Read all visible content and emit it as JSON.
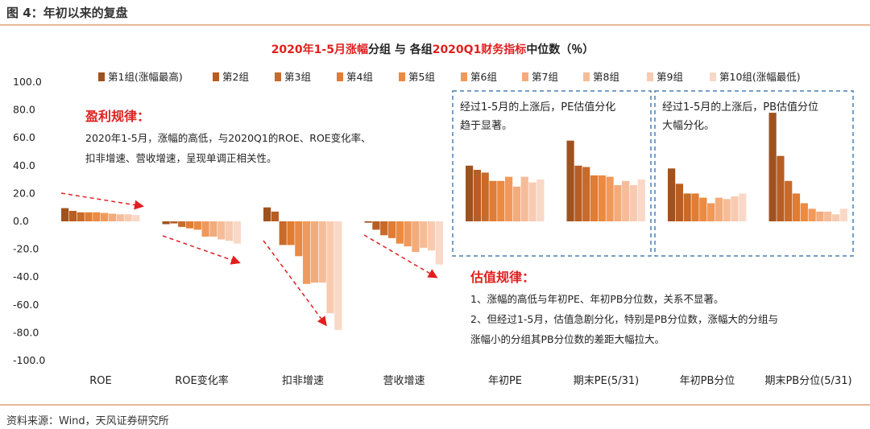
{
  "header": {
    "title": "图 4：年初以来的复盘"
  },
  "footer": {
    "source": "资料来源：Wind，天风证券研究所"
  },
  "chart_data": {
    "type": "bar",
    "title": {
      "red_part1": "2020年1-5月涨幅",
      "dark_part1": "分组 与 各组",
      "red_part2": "2020Q1财务指标",
      "dark_part2": "中位数（％）"
    },
    "categories": [
      "ROE",
      "ROE变化率",
      "扣非增速",
      "营收增速",
      "年初PE",
      "期末PE(5/31)",
      "年初PB分位",
      "期末PB分位(5/31)"
    ],
    "ylim": [
      -100,
      100
    ],
    "yticks": [
      "100.0",
      "80.0",
      "60.0",
      "40.0",
      "20.0",
      "0.0",
      "-20.0",
      "-40.0",
      "-60.0",
      "-80.0",
      "-100.0"
    ],
    "series": [
      {
        "name": "第1组(涨幅最高)",
        "color": "#a0521e",
        "values": [
          9.5,
          -2,
          10,
          -1,
          40,
          58,
          38,
          78
        ]
      },
      {
        "name": "第2组",
        "color": "#b85e24",
        "values": [
          7.5,
          -1.5,
          7,
          -6,
          37,
          40,
          27,
          47
        ]
      },
      {
        "name": "第3组",
        "color": "#c86a2a",
        "values": [
          6.5,
          -4,
          -17,
          -10,
          35,
          39,
          20,
          29
        ]
      },
      {
        "name": "第4组",
        "color": "#e07c34",
        "values": [
          6.5,
          -5,
          -17,
          -12,
          29,
          33,
          20,
          20
        ]
      },
      {
        "name": "第5组",
        "color": "#ec8a40",
        "values": [
          6.5,
          -6,
          -25,
          -16,
          29,
          33,
          17,
          13
        ]
      },
      {
        "name": "第6组",
        "color": "#f1995a",
        "values": [
          6,
          -11,
          -45,
          -18,
          32,
          32,
          13,
          9
        ]
      },
      {
        "name": "第7组",
        "color": "#f4ab7a",
        "values": [
          5.5,
          -11,
          -44,
          -22,
          25,
          26,
          17,
          7
        ]
      },
      {
        "name": "第8组",
        "color": "#f6bc98",
        "values": [
          5,
          -13,
          -44,
          -19,
          32,
          29,
          16,
          7
        ]
      },
      {
        "name": "第9组",
        "color": "#f8cbb0",
        "values": [
          5,
          -14,
          -66,
          -21,
          28,
          26,
          18,
          5
        ]
      },
      {
        "name": "第10组(涨幅最低)",
        "color": "#f9d8c7",
        "values": [
          4.5,
          -16,
          -78,
          -31,
          30,
          30,
          20,
          9
        ]
      }
    ]
  },
  "annotations": {
    "profit_title": "盈利规律：",
    "profit_line1": "2020年1-5月，涨幅的高低，与2020Q1的ROE、ROE变化率、",
    "profit_line2": "扣非增速、营收增速，呈现单调正相关性。",
    "pe_box_line1": "经过1-5月的上涨后，PE估值分化",
    "pe_box_line2": "趋于显著。",
    "pb_box_line1": "经过1-5月的上涨后，PB估值分位",
    "pb_box_line2": "大幅分化。",
    "valuation_title": "估值规律：",
    "valuation_line1": "1、涨幅的高低与年初PE、年初PB分位数，关系不显著。",
    "valuation_line2": "2、但经过1-5月，估值急剧分化，特别是PB分位数，涨幅大的分组与",
    "valuation_line3": "涨幅小的分组其PB分位数的差距大幅拉大。"
  },
  "colors": {
    "accent_red": "#e02020",
    "box_border": "#4a7fb5",
    "rule": "#e8b998"
  }
}
